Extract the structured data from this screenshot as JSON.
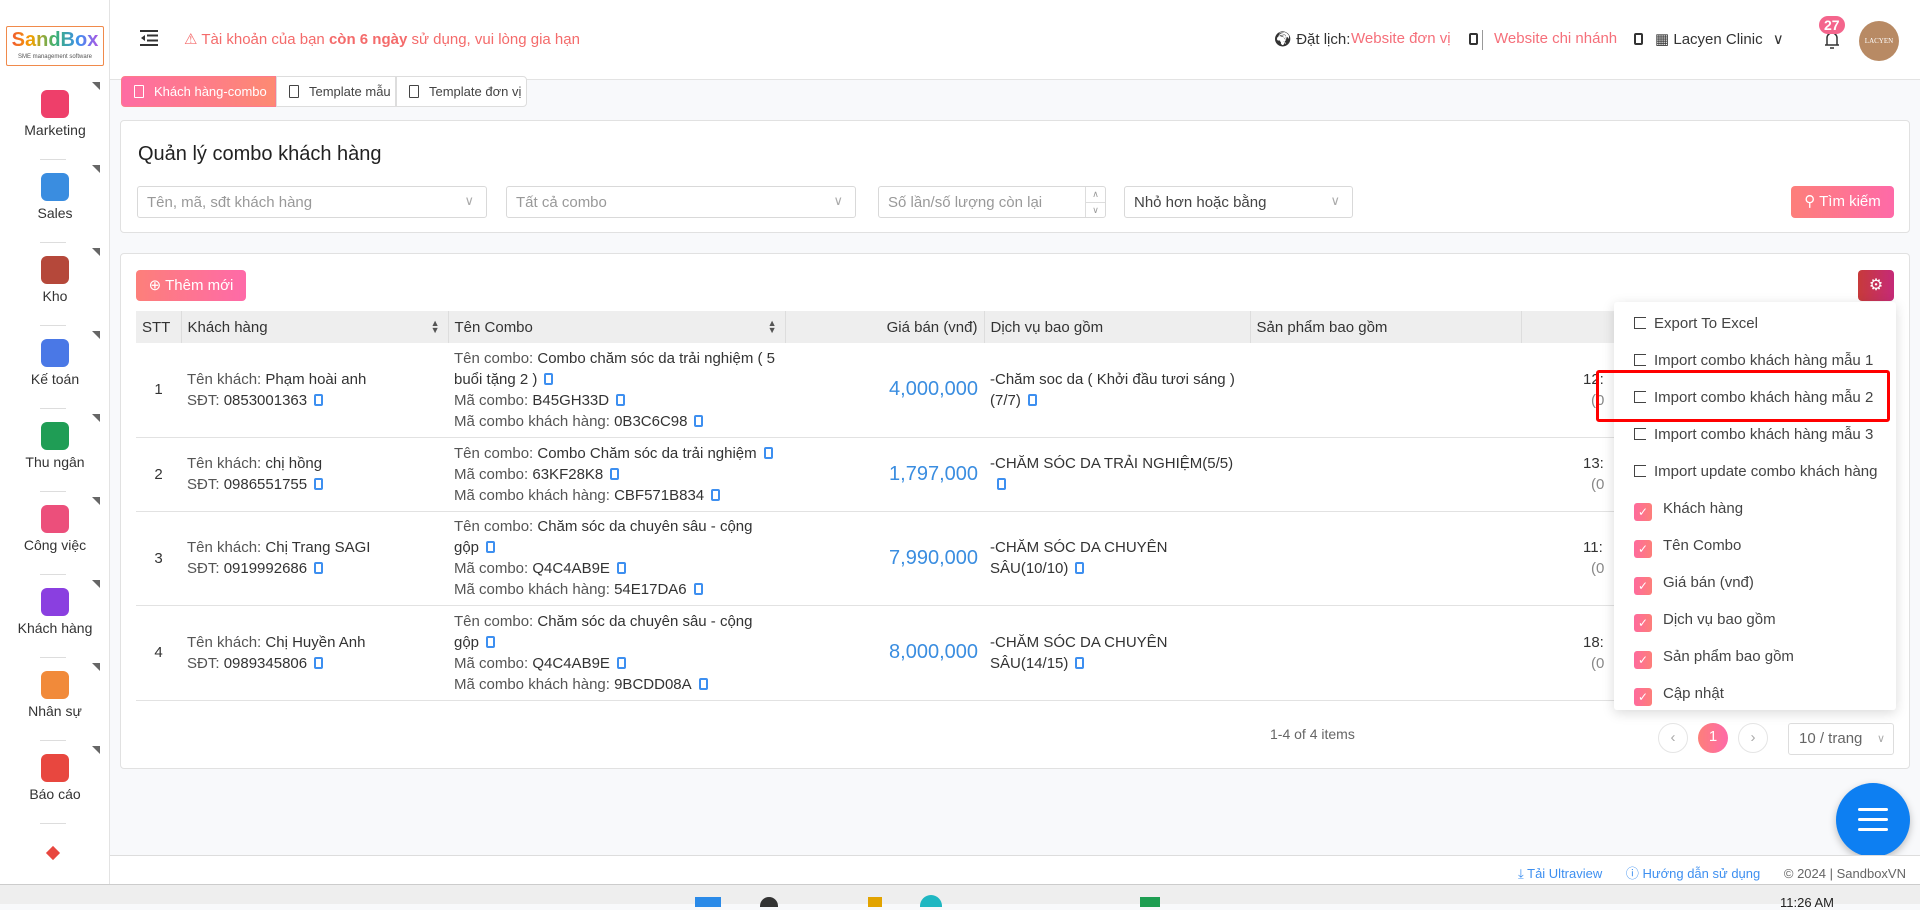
{
  "logo": {
    "name": "SandBox",
    "tagline": "SME management software"
  },
  "sidebar": {
    "items": [
      {
        "label": "Marketing",
        "icon": "megaphone-icon",
        "color": "#ee3f6a"
      },
      {
        "label": "Sales",
        "icon": "headset-icon",
        "color": "#3a8de0"
      },
      {
        "label": "Kho",
        "icon": "warehouse-icon",
        "color": "#b5483a"
      },
      {
        "label": "Kế toán",
        "icon": "calculator-icon",
        "color": "#4a78e6"
      },
      {
        "label": "Thu ngân",
        "icon": "cash-register-icon",
        "color": "#1f9d55"
      },
      {
        "label": "Công việc",
        "icon": "briefcase-icon",
        "color": "#ec4f7b"
      },
      {
        "label": "Khách hàng",
        "icon": "customer-card-icon",
        "color": "#8a3fe0"
      },
      {
        "label": "Nhân sự",
        "icon": "people-icon",
        "color": "#f18a3a"
      },
      {
        "label": "Báo cáo",
        "icon": "pie-chart-icon",
        "color": "#e8473f"
      }
    ]
  },
  "header": {
    "warning_prefix": "⚠ Tài khoản của bạn ",
    "warning_bold": "còn 6 ngày",
    "warning_suffix": " sử dụng, vui lòng gia hạn",
    "booking_label": "Đặt lịch:",
    "website_unit": "Website đơn vị",
    "website_branch": "Website chi nhánh",
    "clinic": "Lacyen Clinic",
    "notifications": "27",
    "avatar_text": "LACYEN"
  },
  "tabs": [
    {
      "label": "Khách hàng-combo",
      "active": true
    },
    {
      "label": "Template mẫu"
    },
    {
      "label": "Template đơn vị"
    }
  ],
  "filter": {
    "title": "Quản lý combo khách hàng",
    "customer_placeholder": "Tên, mã, sđt khách hàng",
    "combo_select": "Tất cả combo",
    "count_placeholder": "Số lần/số lượng còn lại",
    "compare_select": "Nhỏ hơn hoặc bằng",
    "search_label": "Tìm kiếm"
  },
  "table": {
    "add_label": "Thêm mới",
    "columns": [
      "STT",
      "Khách hàng",
      "Tên Combo",
      "Giá bán (vnđ)",
      "Dịch vụ bao gồm",
      "Sản phẩm bao gồm",
      ""
    ],
    "labels": {
      "customer": "Tên khách: ",
      "phone": "SĐT: ",
      "combo_name": "Tên combo: ",
      "combo_code": "Mã combo: ",
      "customer_combo_code": "Mã combo khách hàng: "
    },
    "rows": [
      {
        "stt": "1",
        "name": "Phạm hoài anh",
        "phone": "0853001363",
        "combo": "Combo chăm sóc da trải nghiệm ( 5 buổi tặng 2 )",
        "code": "B45GH33D",
        "ccode": "0B3C6C98",
        "price": "4,000,000",
        "service": "-Chăm soc da ( Khởi đầu tươi sáng ) (7/7)",
        "updated": "12:",
        "updated2": "(0"
      },
      {
        "stt": "2",
        "name": "chị hồng",
        "phone": "0986551755",
        "combo": "Combo Chăm sóc da trải nghiệm",
        "code": "63KF28K8",
        "ccode": "CBF571B834",
        "price": "1,797,000",
        "service": "-CHĂM SÓC DA TRẢI NGHIỆM(5/5)",
        "updated": "13:",
        "updated2": "(0"
      },
      {
        "stt": "3",
        "name": "Chị Trang SAGI",
        "phone": "0919992686",
        "combo": "Chăm sóc da chuyên sâu - cộng gộp",
        "code": "Q4C4AB9E",
        "ccode": "54E17DA6",
        "price": "7,990,000",
        "service": "-CHĂM SÓC DA CHUYÊN SÂU(10/10)",
        "updated": "11:",
        "updated2": "(0"
      },
      {
        "stt": "4",
        "name": "Chị Huyền Anh",
        "phone": "0989345806",
        "combo": "Chăm sóc da chuyên sâu - cộng gộp",
        "code": "Q4C4AB9E",
        "ccode": "9BCDD08A",
        "price": "8,000,000",
        "service": "-CHĂM SÓC DA CHUYÊN SÂU(14/15)",
        "updated": "18:",
        "updated2": "(0"
      }
    ]
  },
  "dropdown": {
    "actions": [
      "Export To Excel",
      "Import combo khách hàng mẫu 1",
      "Import combo khách hàng mẫu 2",
      "Import combo khách hàng mẫu 3",
      "Import update combo khách hàng"
    ],
    "columns": [
      {
        "label": "Khách hàng",
        "checked": true
      },
      {
        "label": "Tên Combo",
        "checked": true
      },
      {
        "label": "Giá bán (vnđ)",
        "checked": true
      },
      {
        "label": "Dịch vụ bao gồm",
        "checked": true
      },
      {
        "label": "Sản phẩm bao gồm",
        "checked": true
      },
      {
        "label": "Cập nhật",
        "checked": true
      }
    ],
    "highlighted": "Import combo khách hàng mẫu 2"
  },
  "pagination": {
    "summary": "1-4 of 4 items",
    "current": "1",
    "page_size": "10 / trang"
  },
  "footer": {
    "ultraview": "Tải Ultraview",
    "guide": "Hướng dẫn sử dụng",
    "copyright": "© 2024",
    "brand": "SandboxVN"
  },
  "taskbar": {
    "time": "11:26 AM"
  },
  "colors": {
    "accent": "#fd7a8c",
    "price": "#3a8de0",
    "link": "#3d8ff0",
    "fab": "#0d7ff2"
  }
}
